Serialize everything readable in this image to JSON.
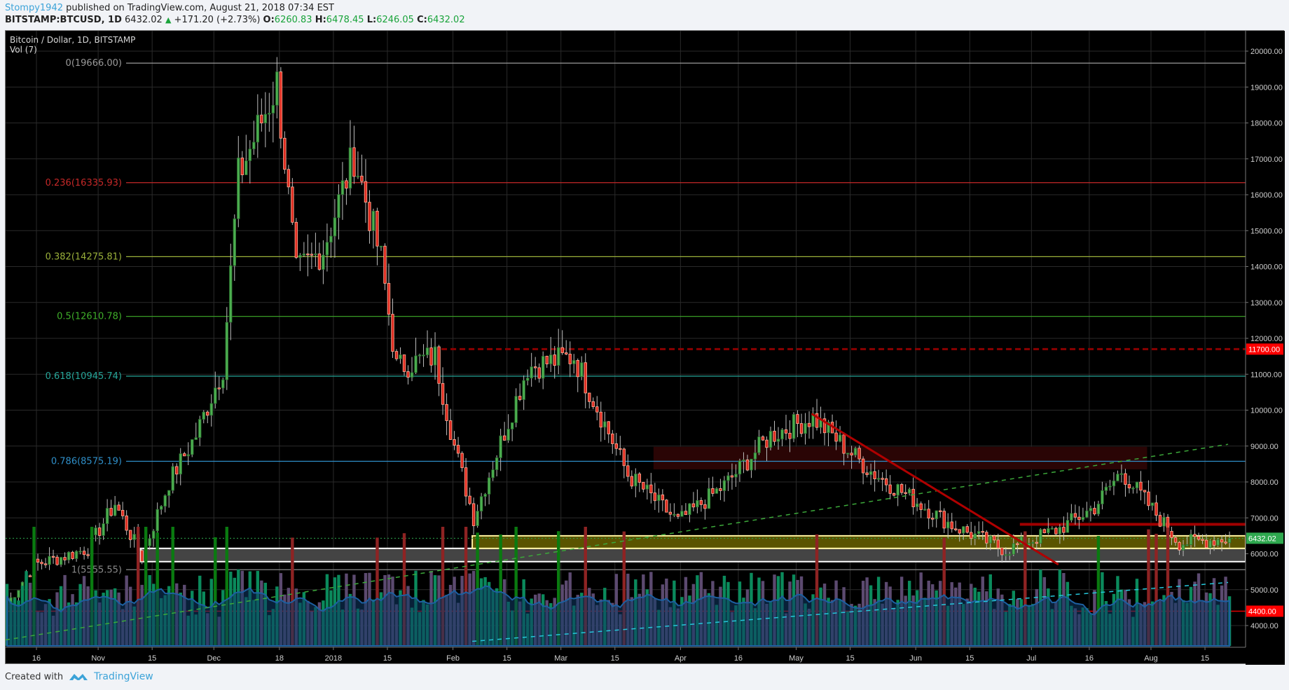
{
  "header": {
    "publisher": "Stompy1942",
    "published_text": "published on TradingView.com, August 21, 2018 07:34 EST",
    "symbol": "BITSTAMP:BTCUSD, 1D",
    "last": "6432.02",
    "change": "+171.20 (+2.73%)",
    "o_label": "O:",
    "o": "6260.83",
    "h_label": "H:",
    "h": "6478.45",
    "l_label": "L:",
    "l": "6246.05",
    "c_label": "C:",
    "c": "6432.02"
  },
  "chart": {
    "title": "Bitcoin / Dollar, 1D, BITSTAMP",
    "volume_label": "Vol (7)"
  },
  "footer": {
    "created_with": "Created with",
    "brand": "TradingView"
  },
  "colors": {
    "up": "#4caf50",
    "down": "#e02b20",
    "vol_up": "#0b8a5c",
    "vol_down": "#5c4a70",
    "vol_high": "#8e2323",
    "vol_ma": "#0e3a66",
    "last_price_badge": "#2ea84f",
    "alert_badge": "#ff0000"
  },
  "chart_data": {
    "type": "candlestick",
    "title": "Bitcoin / Dollar, 1D, BITSTAMP",
    "x_ticks": [
      "16",
      "Nov",
      "15",
      "Dec",
      "18",
      "2018",
      "15",
      "Feb",
      "15",
      "Mar",
      "15",
      "Apr",
      "16",
      "May",
      "15",
      "Jun",
      "15",
      "Jul",
      "16",
      "Aug",
      "15"
    ],
    "y_ticks": [
      "20000.00",
      "19000.00",
      "18000.00",
      "17000.00",
      "16000.00",
      "15000.00",
      "14000.00",
      "13000.00",
      "12000.00",
      "11000.00",
      "10000.00",
      "9000.00",
      "8000.00",
      "7000.00",
      "6000.00",
      "5000.00",
      "4000.00"
    ],
    "ylim": [
      3500,
      20500
    ],
    "fibonacci": [
      {
        "level": "0",
        "price": "19666.00",
        "color": "#9a9a9a"
      },
      {
        "level": "0.236",
        "price": "16335.93",
        "color": "#c62828"
      },
      {
        "level": "0.382",
        "price": "14275.81",
        "color": "#9ab03a"
      },
      {
        "level": "0.5",
        "price": "12610.78",
        "color": "#3fae2a"
      },
      {
        "level": "0.618",
        "price": "10945.74",
        "color": "#26a69a"
      },
      {
        "level": "0.786",
        "price": "8575.19",
        "color": "#2f8fc9"
      },
      {
        "level": "1",
        "price": "5555.55",
        "color": "#8a8a8a"
      }
    ],
    "horizontal_levels": [
      {
        "price": "11700.00",
        "style": "dashed",
        "color": "#8b0000",
        "badge": true
      },
      {
        "price": "6800",
        "style": "solid-thick",
        "color": "#a00000"
      },
      {
        "price": "4400.00",
        "style": "solid",
        "color": "#ff0000",
        "badge": true
      }
    ],
    "last_price": "6432.02",
    "zones": [
      {
        "name": "support-zone-yellow",
        "from": 6150,
        "to": 6500,
        "color": "#5a5400"
      },
      {
        "name": "support-zone-grey",
        "from": 5780,
        "to": 6150,
        "color": "#444444"
      },
      {
        "name": "resistance-zone-dark-red",
        "from": 8350,
        "to": 8980,
        "color": "#2a0505"
      }
    ],
    "trendlines": [
      {
        "name": "descending-red",
        "from": [
          "May 5",
          9900
        ],
        "to": [
          "Jul 8",
          5750
        ]
      },
      {
        "name": "ascending-green-dashed",
        "from": [
          "Oct 8",
          3600
        ],
        "to": [
          "Aug 23",
          9050
        ]
      },
      {
        "name": "ascending-cyan-dashed",
        "from": [
          "Feb 6",
          3600
        ],
        "to": [
          "Aug 23",
          5200
        ]
      }
    ],
    "key_prices": {
      "peak": 19666,
      "peak_date": "Dec 17",
      "feb_low": 6000,
      "feb_low_date": "Feb 6",
      "last": 6432.02
    },
    "closes_approx": [
      {
        "date": "Oct 8",
        "c": 4600
      },
      {
        "date": "Oct 15",
        "c": 5700
      },
      {
        "date": "Oct 22",
        "c": 5900
      },
      {
        "date": "Oct 29",
        "c": 6150
      },
      {
        "date": "Nov 5",
        "c": 7400
      },
      {
        "date": "Nov 12",
        "c": 5900
      },
      {
        "date": "Nov 19",
        "c": 8000
      },
      {
        "date": "Nov 26",
        "c": 9300
      },
      {
        "date": "Dec 3",
        "c": 11200
      },
      {
        "date": "Dec 7",
        "c": 16500
      },
      {
        "date": "Dec 17",
        "c": 19100
      },
      {
        "date": "Dec 22",
        "c": 13800
      },
      {
        "date": "Dec 29",
        "c": 14500
      },
      {
        "date": "Jan 6",
        "c": 17100
      },
      {
        "date": "Jan 13",
        "c": 14200
      },
      {
        "date": "Jan 17",
        "c": 11200
      },
      {
        "date": "Jan 27",
        "c": 11500
      },
      {
        "date": "Feb 1",
        "c": 9000
      },
      {
        "date": "Feb 6",
        "c": 7000
      },
      {
        "date": "Feb 20",
        "c": 11200
      },
      {
        "date": "Mar 4",
        "c": 11500
      },
      {
        "date": "Mar 18",
        "c": 8200
      },
      {
        "date": "Mar 31",
        "c": 6900
      },
      {
        "date": "Apr 12",
        "c": 7900
      },
      {
        "date": "Apr 24",
        "c": 9300
      },
      {
        "date": "May 5",
        "c": 9800
      },
      {
        "date": "May 20",
        "c": 8300
      },
      {
        "date": "Jun 10",
        "c": 6800
      },
      {
        "date": "Jun 24",
        "c": 6100
      },
      {
        "date": "Jul 8",
        "c": 6700
      },
      {
        "date": "Jul 17",
        "c": 7300
      },
      {
        "date": "Jul 24",
        "c": 8300
      },
      {
        "date": "Aug 8",
        "c": 6300
      },
      {
        "date": "Aug 21",
        "c": 6432
      }
    ]
  }
}
